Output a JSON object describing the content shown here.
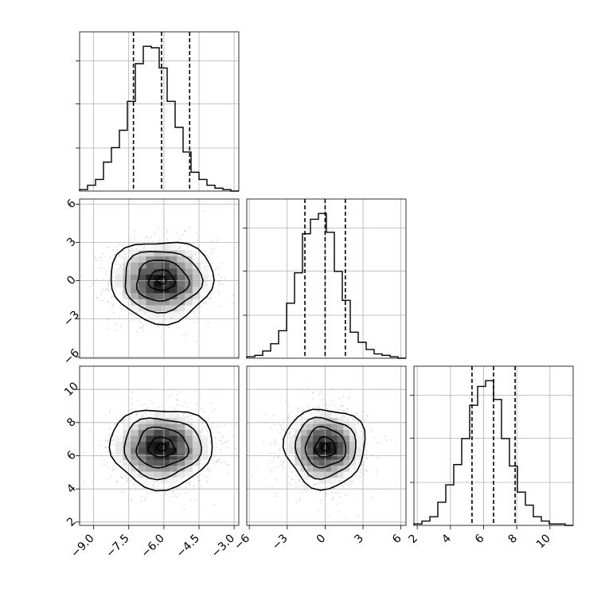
{
  "chart_data": [
    {
      "type": "bar",
      "panel": "hist-0",
      "param": "p0",
      "bin_range": [
        -9.6,
        -2.8
      ],
      "bins": 20,
      "density": [
        0.01,
        0.04,
        0.08,
        0.2,
        0.3,
        0.42,
        0.62,
        0.88,
        1.0,
        0.99,
        0.85,
        0.62,
        0.44,
        0.27,
        0.13,
        0.08,
        0.04,
        0.02,
        0.01,
        0.0
      ],
      "quantiles": [
        -7.3,
        -6.1,
        -4.9
      ],
      "xlim": [
        -9.6,
        -2.8
      ]
    },
    {
      "type": "heatmap",
      "panel": "scatter-0-1",
      "x_param": "p0",
      "y_param": "p1",
      "center": [
        -6.1,
        0.0
      ],
      "spread": [
        1.1,
        1.6
      ],
      "xlim": [
        -9.6,
        -2.8
      ],
      "ylim": [
        -6.1,
        6.4
      ]
    },
    {
      "type": "bar",
      "panel": "hist-1",
      "param": "p1",
      "bin_range": [
        -6.2,
        6.4
      ],
      "bins": 20,
      "density": [
        0.01,
        0.02,
        0.05,
        0.1,
        0.19,
        0.38,
        0.59,
        0.86,
        0.96,
        1.0,
        0.87,
        0.6,
        0.4,
        0.18,
        0.11,
        0.06,
        0.03,
        0.02,
        0.01,
        0.0
      ],
      "quantiles": [
        -1.6,
        0.0,
        1.6
      ],
      "xlim": [
        -6.2,
        6.4
      ]
    },
    {
      "type": "heatmap",
      "panel": "scatter-0-2",
      "x_param": "p0",
      "y_param": "p2",
      "center": [
        -6.1,
        6.5
      ],
      "spread": [
        1.1,
        1.2
      ],
      "xlim": [
        -9.6,
        -2.8
      ],
      "ylim": [
        1.8,
        11.4
      ]
    },
    {
      "type": "heatmap",
      "panel": "scatter-1-2",
      "x_param": "p1",
      "y_param": "p2",
      "center": [
        0.0,
        6.5
      ],
      "spread": [
        1.6,
        1.2
      ],
      "xlim": [
        -6.2,
        6.4
      ],
      "ylim": [
        1.8,
        11.4
      ]
    },
    {
      "type": "bar",
      "panel": "hist-2",
      "param": "p2",
      "bin_range": [
        1.8,
        11.4
      ],
      "bins": 20,
      "density": [
        0.01,
        0.03,
        0.06,
        0.16,
        0.28,
        0.42,
        0.6,
        0.83,
        0.96,
        1.0,
        0.87,
        0.6,
        0.41,
        0.23,
        0.14,
        0.06,
        0.03,
        0.01,
        0.01,
        0.0
      ],
      "quantiles": [
        5.3,
        6.6,
        7.9
      ],
      "xlim": [
        1.8,
        11.4
      ]
    }
  ],
  "axes": {
    "p0": {
      "ticks": [
        -9.0,
        -7.5,
        -6.0,
        -4.5,
        -3.0
      ],
      "labels": [
        "−9.0",
        "−7.5",
        "−6.0",
        "−4.5",
        "−3.0"
      ]
    },
    "p1": {
      "ticks": [
        -6,
        -3,
        0,
        3,
        6
      ],
      "labels": [
        "−6",
        "−3",
        "0",
        "3",
        "6"
      ]
    },
    "p2": {
      "ticks": [
        2,
        4,
        6,
        8,
        10
      ],
      "labels": [
        "2",
        "4",
        "6",
        "8",
        "10"
      ]
    }
  },
  "hist_grid_fractions": [
    0.33,
    0.67,
    1.0
  ],
  "colors": {
    "line": "#000000",
    "grid": "#b0b0b0",
    "point": "#b4b4b4"
  }
}
